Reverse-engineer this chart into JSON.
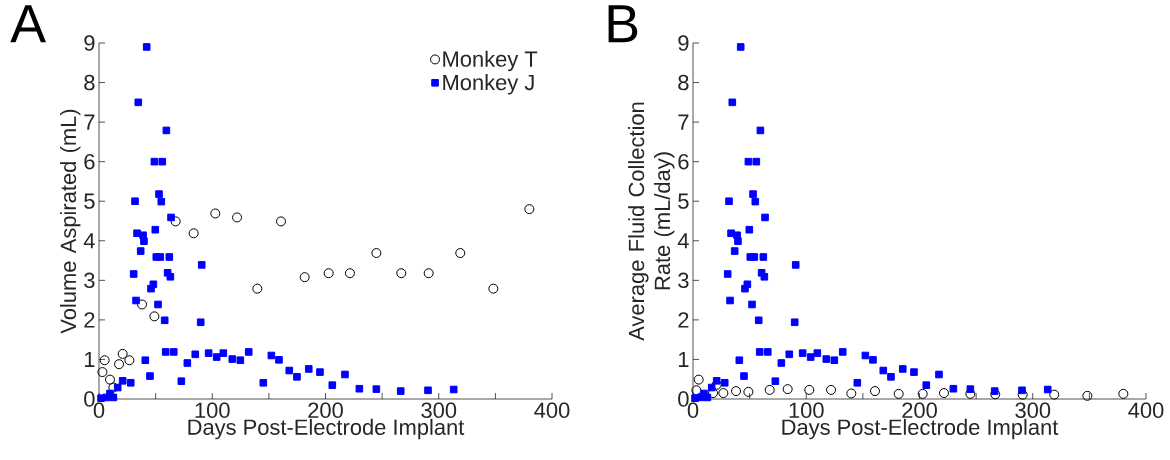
{
  "chart_data": [
    {
      "type": "scatter",
      "annotations": [
        "A"
      ],
      "xlabel": "Days Post-Electrode Implant",
      "ylabel": "Volume Aspirated (mL)",
      "xlim": [
        0,
        400
      ],
      "ylim": [
        0,
        9
      ],
      "xticks": [
        0,
        {
          "value": 50,
          "label": null
        },
        100,
        {
          "value": 150,
          "label": null
        },
        200,
        {
          "value": 250,
          "label": null
        },
        300,
        {
          "value": 350,
          "label": null
        },
        400
      ],
      "yticks": [
        0,
        1,
        2,
        3,
        4,
        5,
        6,
        7,
        8,
        9
      ],
      "legend": "top right",
      "series": [
        {
          "name": "Monkey T",
          "color": "#000000",
          "marker": "circle",
          "x": [
            3,
            5,
            9.7,
            12.7,
            17.7,
            20.9,
            26.8,
            38,
            48.9,
            67.7,
            83.6,
            102.7,
            121.9,
            139.8,
            160.7,
            181.6,
            202.8,
            221.6,
            244.9,
            266.9,
            291.1,
            319,
            348.2,
            380
          ],
          "values": [
            0.68,
            0.98,
            0.49,
            0.29,
            0.88,
            1.14,
            0.98,
            2.39,
            2.09,
            4.49,
            4.19,
            4.69,
            4.59,
            2.79,
            4.49,
            3.08,
            3.18,
            3.18,
            3.69,
            3.18,
            3.18,
            3.69,
            2.79,
            4.8
          ]
        },
        {
          "name": "Monkey J",
          "color": "#0000ff",
          "marker": "square",
          "x": [
            1.8,
            6.5,
            9.7,
            12.7,
            16.5,
            20.9,
            28,
            30.6,
            31.8,
            32.7,
            33.6,
            34.7,
            36.8,
            38.9,
            39.7,
            40.9,
            42.1,
            45,
            45.9,
            48,
            48.9,
            49.7,
            50.6,
            52.1,
            53,
            54.1,
            55,
            55.9,
            58,
            58.9,
            59.5,
            60.6,
            62.1,
            63,
            63.6,
            66,
            72.7,
            78,
            85,
            89.8,
            90.7,
            96.8,
            103.9,
            109.8,
            117.7,
            124.8,
            132.2,
            145.1,
            152.2,
            158.9,
            168,
            174.8,
            185.2,
            195.1,
            206,
            217.2,
            229.9,
            244.9,
            266.4,
            290.5,
            313.2
          ],
          "values": [
            0.02,
            0.04,
            0.14,
            0.04,
            0.29,
            0.46,
            0.41,
            3.16,
            5.0,
            2.49,
            4.19,
            7.5,
            3.74,
            4.14,
            3.99,
            0.98,
            8.9,
            0.58,
            2.79,
            2.9,
            6.0,
            4.28,
            3.59,
            2.39,
            5.18,
            3.59,
            4.99,
            6.0,
            1.99,
            1.19,
            6.79,
            3.19,
            3.59,
            3.09,
            4.59,
            1.19,
            0.45,
            0.91,
            1.13,
            1.94,
            3.39,
            1.16,
            1.06,
            1.16,
            1.01,
            0.98,
            1.19,
            0.41,
            1.1,
            0.99,
            0.72,
            0.56,
            0.76,
            0.68,
            0.35,
            0.62,
            0.26,
            0.25,
            0.2,
            0.22,
            0.24
          ]
        }
      ]
    },
    {
      "type": "scatter",
      "annotations": [
        "B"
      ],
      "xlabel": "Days Post-Electrode Implant",
      "ylabel": "Average Fluid Collection Rate (mL/day)",
      "xlim": [
        0,
        400
      ],
      "ylim": [
        0,
        9
      ],
      "xticks": [
        0,
        {
          "value": 50,
          "label": null
        },
        100,
        {
          "value": 150,
          "label": null
        },
        200,
        {
          "value": 250,
          "label": null
        },
        300,
        {
          "value": 350,
          "label": null
        },
        400
      ],
      "yticks": [
        0,
        1,
        2,
        3,
        4,
        5,
        6,
        7,
        8,
        9
      ],
      "series": [
        {
          "color": "#000000",
          "marker": "circle",
          "x": [
            3,
            5,
            9.7,
            12.7,
            17.7,
            20.9,
            26.8,
            38,
            48.9,
            67.7,
            83.6,
            102.7,
            121.9,
            139.8,
            160.7,
            181.6,
            202.8,
            221.6,
            244.9,
            266.9,
            291.1,
            319,
            348.2,
            380
          ],
          "values": [
            0.22,
            0.49,
            null,
            null,
            0.15,
            0.36,
            0.15,
            0.2,
            0.18,
            0.23,
            0.25,
            0.23,
            0.23,
            0.14,
            0.2,
            0.13,
            0.13,
            0.15,
            0.13,
            0.12,
            0.11,
            0.11,
            0.08,
            0.13
          ]
        },
        {
          "color": "#0000ff",
          "marker": "square",
          "x": [
            1.8,
            6.5,
            9.7,
            12.7,
            16.5,
            20.9,
            28,
            30.6,
            31.8,
            32.7,
            33.6,
            34.7,
            36.8,
            38.9,
            39.7,
            40.9,
            42.1,
            45,
            45.9,
            48,
            48.9,
            49.7,
            50.6,
            52.1,
            53,
            54.1,
            55,
            55.9,
            58,
            58.9,
            59.5,
            60.6,
            62.1,
            63,
            63.6,
            66,
            72.7,
            78,
            85,
            89.8,
            90.7,
            96.8,
            103.9,
            109.8,
            117.7,
            124.8,
            132.2,
            145.1,
            152.2,
            158.9,
            168,
            174.8,
            185.2,
            195.1,
            206,
            217.2,
            229.9,
            244.9,
            266.4,
            290.5,
            313.2
          ],
          "values": [
            0.02,
            0.04,
            0.14,
            0.04,
            0.29,
            0.46,
            0.41,
            3.16,
            5.0,
            2.49,
            4.19,
            7.5,
            3.74,
            4.14,
            3.99,
            0.98,
            8.9,
            0.58,
            2.79,
            2.9,
            6.0,
            4.28,
            3.59,
            2.39,
            5.18,
            3.59,
            4.99,
            6.0,
            1.99,
            1.19,
            6.79,
            3.19,
            3.59,
            3.09,
            4.59,
            1.19,
            0.45,
            0.91,
            1.13,
            1.94,
            3.39,
            1.16,
            1.06,
            1.16,
            1.01,
            0.98,
            1.19,
            0.41,
            1.1,
            0.99,
            0.72,
            0.56,
            0.76,
            0.68,
            0.35,
            0.62,
            0.26,
            0.25,
            0.2,
            0.22,
            0.24
          ]
        }
      ]
    }
  ]
}
